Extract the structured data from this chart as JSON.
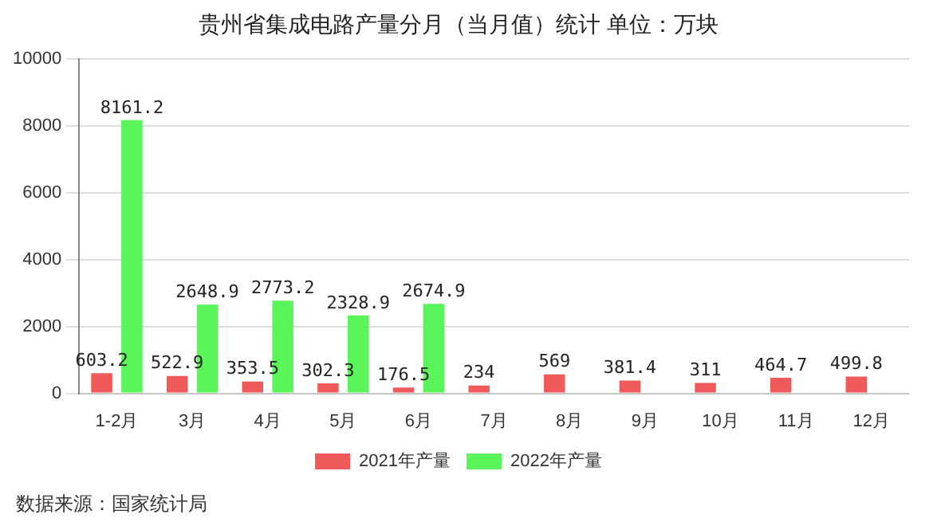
{
  "chart_data": {
    "type": "bar",
    "title": "贵州省集成电路产量分月（当月值）统计 单位：万块",
    "categories": [
      "1-2月",
      "3月",
      "4月",
      "5月",
      "6月",
      "7月",
      "8月",
      "9月",
      "10月",
      "11月",
      "12月"
    ],
    "series": [
      {
        "name": "2021年产量",
        "color": "#f05a5a",
        "values": [
          603.2,
          522.9,
          353.5,
          302.3,
          176.5,
          234,
          569,
          381.4,
          311,
          464.7,
          499.8
        ]
      },
      {
        "name": "2022年产量",
        "color": "#5af55a",
        "values": [
          8161.2,
          2648.9,
          2773.2,
          2328.9,
          2674.9,
          null,
          null,
          null,
          null,
          null,
          null
        ]
      }
    ],
    "ylim": [
      0,
      10000
    ],
    "yticks": [
      0,
      2000,
      4000,
      6000,
      8000,
      10000
    ],
    "grid": "y",
    "legend": "bottom",
    "data_labels": true,
    "annotations": [
      "数据来源：国家统计局"
    ]
  }
}
